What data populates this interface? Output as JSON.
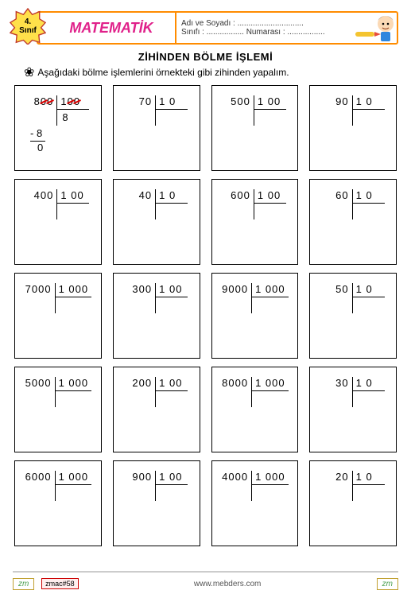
{
  "badge": {
    "line1": "4.",
    "line2": "Sınıf"
  },
  "header": {
    "subject": "MATEMATİK",
    "name_label": "Adı ve Soyadı : ..............................",
    "class_label": "Sınıfı : ................. Numarası : ................."
  },
  "title": "ZİHİNDEN BÖLME  İŞLEMİ",
  "instruction": "Aşağıdaki  bölme işlemlerini örnekteki gibi zihinden yapalım.",
  "problems": [
    {
      "dividend": "800",
      "divisor": "100",
      "example": true,
      "quotient": "8",
      "sub": "- 8",
      "rem": "0"
    },
    {
      "dividend": "70",
      "divisor": "10"
    },
    {
      "dividend": "500",
      "divisor": "100"
    },
    {
      "dividend": "90",
      "divisor": "10"
    },
    {
      "dividend": "400",
      "divisor": "100"
    },
    {
      "dividend": "40",
      "divisor": "10"
    },
    {
      "dividend": "600",
      "divisor": "100"
    },
    {
      "dividend": "60",
      "divisor": "10"
    },
    {
      "dividend": "7000",
      "divisor": "1000"
    },
    {
      "dividend": "300",
      "divisor": "100"
    },
    {
      "dividend": "9000",
      "divisor": "1000"
    },
    {
      "dividend": "50",
      "divisor": "10"
    },
    {
      "dividend": "5000",
      "divisor": "1000"
    },
    {
      "dividend": "200",
      "divisor": "100"
    },
    {
      "dividend": "8000",
      "divisor": "1000"
    },
    {
      "dividend": "30",
      "divisor": "10"
    },
    {
      "dividend": "6000",
      "divisor": "1000"
    },
    {
      "dividend": "900",
      "divisor": "100"
    },
    {
      "dividend": "4000",
      "divisor": "1000"
    },
    {
      "dividend": "20",
      "divisor": "10"
    }
  ],
  "footer": {
    "brand": "zm",
    "code": "zmac#58",
    "url": "www.mebders.com"
  },
  "colors": {
    "accent_border": "#ff8c00",
    "subject_color": "#e0218a",
    "strike_color": "#d00000",
    "badge_fill": "#ffe04a",
    "badge_stroke": "#c0392b"
  }
}
